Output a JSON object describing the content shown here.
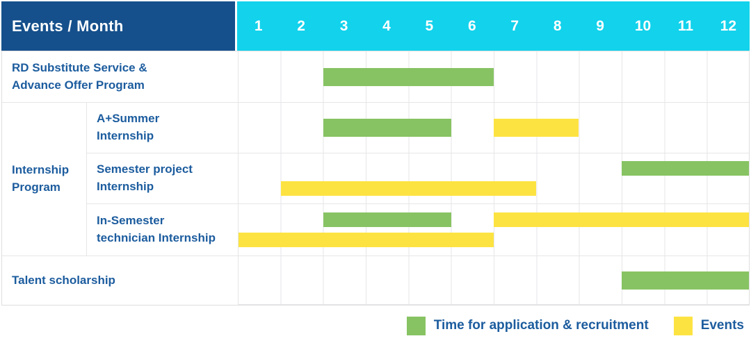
{
  "header": {
    "label": "Events / Month",
    "months": [
      "1",
      "2",
      "3",
      "4",
      "5",
      "6",
      "7",
      "8",
      "9",
      "10",
      "11",
      "12"
    ]
  },
  "labels": {
    "rd_substitute": [
      "RD Substitute Service &",
      "Advance Offer Program"
    ],
    "internship_group": [
      "Internship",
      "Program"
    ],
    "a_summer": [
      "A+Summer",
      "Internship"
    ],
    "semester_project": [
      "Semester project",
      "Internship"
    ],
    "in_semester": [
      "In-Semester",
      "technician Internship"
    ],
    "talent": [
      "Talent scholarship"
    ]
  },
  "chart_data": {
    "type": "gantt",
    "x_axis": {
      "unit": "month",
      "ticks": [
        1,
        2,
        3,
        4,
        5,
        6,
        7,
        8,
        9,
        10,
        11,
        12
      ],
      "range": [
        1,
        12
      ]
    },
    "series": {
      "recruitment": {
        "name": "Time for application & recruitment",
        "color": "#87c363"
      },
      "events": {
        "name": "Events",
        "color": "#fde342"
      }
    },
    "rows": [
      {
        "label": "RD Substitute Service & Advance Offer Program",
        "bars": [
          {
            "series": "recruitment",
            "start": 3,
            "end": 6,
            "lane": "center"
          }
        ]
      },
      {
        "label": "A+Summer Internship",
        "group": "Internship Program",
        "bars": [
          {
            "series": "recruitment",
            "start": 3,
            "end": 5,
            "lane": "center"
          },
          {
            "series": "events",
            "start": 7,
            "end": 8,
            "lane": "center"
          }
        ]
      },
      {
        "label": "Semester project Internship",
        "group": "Internship Program",
        "bars": [
          {
            "series": "recruitment",
            "start": 10,
            "end": 12,
            "lane": "top"
          },
          {
            "series": "events",
            "start": 2,
            "end": 7,
            "lane": "bottom"
          }
        ]
      },
      {
        "label": "In-Semester technician Internship",
        "group": "Internship Program",
        "bars": [
          {
            "series": "recruitment",
            "start": 3,
            "end": 5,
            "lane": "top"
          },
          {
            "series": "events",
            "start": 7,
            "end": 12,
            "lane": "top"
          },
          {
            "series": "events",
            "start": 1,
            "end": 6,
            "lane": "bottom"
          }
        ]
      },
      {
        "label": "Talent scholarship",
        "bars": [
          {
            "series": "recruitment",
            "start": 10,
            "end": 12,
            "lane": "center"
          }
        ]
      }
    ]
  },
  "legend": [
    {
      "key": "recruitment",
      "label": "Time for application & recruitment",
      "color": "#87c363"
    },
    {
      "key": "events",
      "label": "Events",
      "color": "#fde342"
    }
  ],
  "colors": {
    "header_bg": "#15508c",
    "months_bg": "#12d2ec",
    "header_text": "#ffffff",
    "label_text": "#1c5c9e",
    "grid_line": "#e6e6e8",
    "recruitment_green": "#87c363",
    "events_yellow": "#fde342"
  }
}
